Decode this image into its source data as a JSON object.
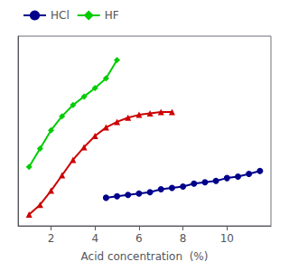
{
  "chart_data": {
    "type": "line",
    "xlabel": "Acid concentration  (%)",
    "xlim": [
      0.5,
      12.0
    ],
    "xticks": [
      2,
      4,
      6,
      8,
      10
    ],
    "ylim": [
      0.0,
      1.35
    ],
    "tick_labels": "x",
    "grid": false,
    "legend": "upper left",
    "series": [
      {
        "name": "HCl",
        "color": "#00008B",
        "marker": "circle",
        "x": [
          4.5,
          5.0,
          5.5,
          6.0,
          6.5,
          7.0,
          7.5,
          8.0,
          8.5,
          9.0,
          9.5,
          10.0,
          10.5,
          11.0,
          11.5
        ],
        "values": [
          0.2,
          0.21,
          0.22,
          0.23,
          0.24,
          0.26,
          0.27,
          0.28,
          0.3,
          0.31,
          0.32,
          0.34,
          0.35,
          0.37,
          0.39
        ]
      },
      {
        "name": "HF",
        "color": "#00CC00",
        "marker": "diamond",
        "x": [
          1.0,
          1.5,
          2.0,
          2.5,
          3.0,
          3.5,
          4.0,
          4.5,
          5.0
        ],
        "values": [
          0.42,
          0.55,
          0.68,
          0.78,
          0.86,
          0.92,
          0.98,
          1.05,
          1.18
        ]
      },
      {
        "color": "#CC0000",
        "marker": "triangle",
        "x": [
          1.0,
          1.5,
          2.0,
          2.5,
          3.0,
          3.5,
          4.0,
          4.5,
          5.0,
          5.5,
          6.0,
          6.5,
          7.0,
          7.5
        ],
        "values": [
          0.08,
          0.15,
          0.25,
          0.36,
          0.47,
          0.56,
          0.64,
          0.7,
          0.74,
          0.77,
          0.79,
          0.8,
          0.81,
          0.81
        ]
      }
    ]
  }
}
